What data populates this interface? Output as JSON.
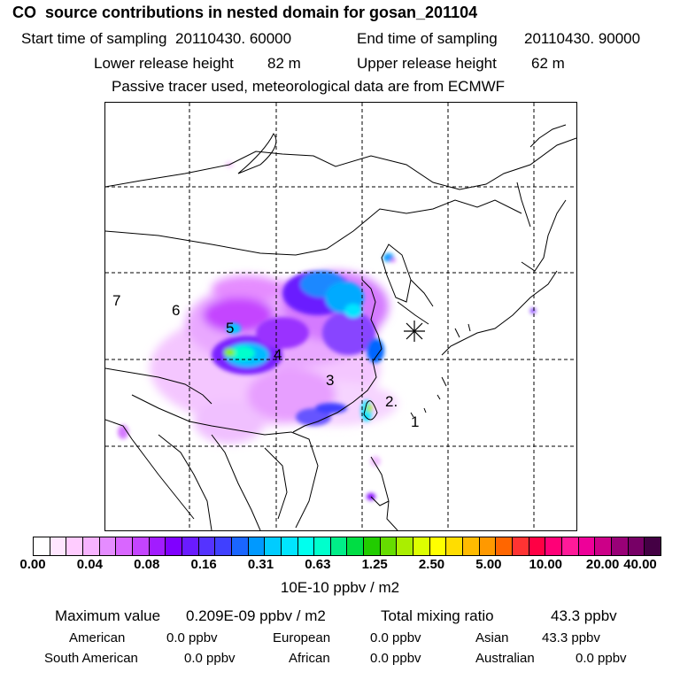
{
  "header": {
    "title": "CO  source contributions in nested domain for gosan_201104",
    "start_label": "Start time of sampling",
    "start_value": "20110430. 60000",
    "end_label": "End time of sampling",
    "end_value": "20110430. 90000",
    "lower_label": "Lower release height",
    "lower_value": "82 m",
    "upper_label": "Upper release height",
    "upper_value": "62 m",
    "note": "Passive tracer used, meteorological data are from ECMWF"
  },
  "map": {
    "region_labels": [
      "7",
      "6",
      "5",
      "4",
      "3",
      "2.",
      "1"
    ],
    "receptor_icon": "star-marker-icon"
  },
  "colorbar": {
    "ticks": [
      "0.00",
      "0.04",
      "0.08",
      "0.16",
      "0.31",
      "0.63",
      "1.25",
      "2.50",
      "5.00",
      "10.00",
      "20.00",
      "40.00"
    ],
    "colors": [
      "#ffffff",
      "#ffe6ff",
      "#ffccff",
      "#f7b3ff",
      "#e58cff",
      "#d966ff",
      "#c444ff",
      "#a21cff",
      "#8000ff",
      "#6a1bff",
      "#5533ff",
      "#4040ff",
      "#1a66ff",
      "#0099ff",
      "#00ccff",
      "#00e5ff",
      "#00ffee",
      "#00ffcc",
      "#00ee88",
      "#00dd44",
      "#22cc00",
      "#66dd00",
      "#aaee00",
      "#ddff00",
      "#ffff00",
      "#ffdd00",
      "#ffbb00",
      "#ff9900",
      "#ff6600",
      "#ff3333",
      "#ff0044",
      "#ff0077",
      "#ff1a99",
      "#ee0099",
      "#cc0088",
      "#990077",
      "#770066",
      "#440044"
    ],
    "unit": "10E-10 ppbv / m2"
  },
  "stats": {
    "max_label": "Maximum value",
    "max_value": "0.209E-09 ppbv / m2",
    "total_label": "Total mixing ratio",
    "total_value": "43.3 ppbv",
    "american_label": "American",
    "american_value": "0.0 ppbv",
    "european_label": "European",
    "european_value": "0.0 ppbv",
    "asian_label": "Asian",
    "asian_value": "43.3 ppbv",
    "south_american_label": "South American",
    "south_american_value": "0.0 ppbv",
    "african_label": "African",
    "african_value": "0.0 ppbv",
    "australian_label": "Australian",
    "australian_value": "0.0 ppbv"
  }
}
